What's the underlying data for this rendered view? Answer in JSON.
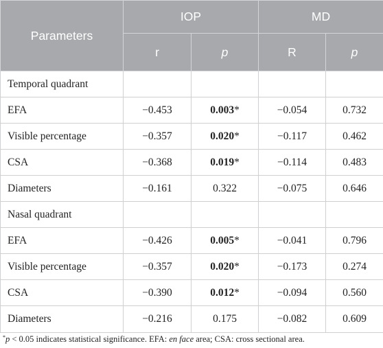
{
  "header": {
    "parameters": "Parameters",
    "iop": "IOP",
    "md": "MD",
    "iop_r": "r",
    "iop_p": "p",
    "md_r": "R",
    "md_p": "p"
  },
  "sections": [
    {
      "title": "Temporal quadrant",
      "rows": [
        {
          "param": "EFA",
          "iop_r": "−0.453",
          "iop_p": "0.003",
          "iop_sig": "*",
          "md_r": "−0.054",
          "md_p": "0.732"
        },
        {
          "param": "Visible percentage",
          "iop_r": "−0.357",
          "iop_p": "0.020",
          "iop_sig": "*",
          "md_r": "−0.117",
          "md_p": "0.462"
        },
        {
          "param": "CSA",
          "iop_r": "−0.368",
          "iop_p": "0.019",
          "iop_sig": "*",
          "md_r": "−0.114",
          "md_p": "0.483"
        },
        {
          "param": "Diameters",
          "iop_r": "−0.161",
          "iop_p": "0.322",
          "iop_sig": "",
          "md_r": "−0.075",
          "md_p": "0.646"
        }
      ]
    },
    {
      "title": "Nasal quadrant",
      "rows": [
        {
          "param": "EFA",
          "iop_r": "−0.426",
          "iop_p": "0.005",
          "iop_sig": "*",
          "md_r": "−0.041",
          "md_p": "0.796"
        },
        {
          "param": "Visible percentage",
          "iop_r": "−0.357",
          "iop_p": "0.020",
          "iop_sig": "*",
          "md_r": "−0.173",
          "md_p": "0.274"
        },
        {
          "param": "CSA",
          "iop_r": "−0.390",
          "iop_p": "0.012",
          "iop_sig": "*",
          "md_r": "−0.094",
          "md_p": "0.560"
        },
        {
          "param": "Diameters",
          "iop_r": "−0.216",
          "iop_p": "0.175",
          "iop_sig": "",
          "md_r": "−0.082",
          "md_p": "0.609"
        }
      ]
    }
  ],
  "footnote": {
    "mark": "*",
    "p_symbol": "p",
    "text_a": " < 0.05 indicates statistical significance. EFA: ",
    "en_face": "en face",
    "text_b": " area; CSA: cross sectional area."
  }
}
